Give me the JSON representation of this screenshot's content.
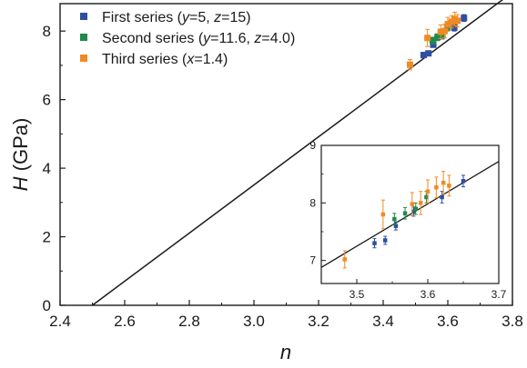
{
  "chart_data": [
    {
      "type": "scatter",
      "title": "",
      "xlabel": "n",
      "ylabel": {
        "var": "H",
        "unit": " (GPa)"
      },
      "xlim": [
        2.4,
        3.8
      ],
      "ylim": [
        0,
        8.8
      ],
      "xticks": [
        "2.4",
        "2.6",
        "2.8",
        "3.0",
        "3.2",
        "3.4",
        "3.6",
        "3.8"
      ],
      "yticks": [
        "0",
        "2",
        "4",
        "6",
        "8"
      ],
      "grid": false,
      "legend_position": "top-left",
      "fit_line": {
        "points": [
          [
            2.5,
            0
          ],
          [
            3.8,
            9.13
          ]
        ],
        "color": "#1a1a1a"
      },
      "series": [
        {
          "name": "First series (y=5, z=15)",
          "name_parts": [
            {
              "t": "First series (",
              "i": false
            },
            {
              "t": "y",
              "i": true
            },
            {
              "t": "=5, ",
              "i": false
            },
            {
              "t": "z",
              "i": true
            },
            {
              "t": "=15)",
              "i": false
            }
          ],
          "color": "#2e4fa0",
          "points": [
            {
              "x": 3.525,
              "y": 7.3,
              "err": 0.08
            },
            {
              "x": 3.54,
              "y": 7.35,
              "err": 0.07
            },
            {
              "x": 3.555,
              "y": 7.6,
              "err": 0.07
            },
            {
              "x": 3.58,
              "y": 7.85,
              "err": 0.08
            },
            {
              "x": 3.62,
              "y": 8.1,
              "err": 0.1
            },
            {
              "x": 3.65,
              "y": 8.38,
              "err": 0.1
            }
          ]
        },
        {
          "name": "Second series (y=11.6, z=4.0)",
          "name_parts": [
            {
              "t": "Second series (",
              "i": false
            },
            {
              "t": "y",
              "i": true
            },
            {
              "t": "=11.6, ",
              "i": false
            },
            {
              "t": "z",
              "i": true
            },
            {
              "t": "=4.0)",
              "i": false
            }
          ],
          "color": "#1f8a4c",
          "points": [
            {
              "x": 3.553,
              "y": 7.72,
              "err": 0.1
            },
            {
              "x": 3.568,
              "y": 7.82,
              "err": 0.1
            },
            {
              "x": 3.583,
              "y": 7.9,
              "err": 0.1
            },
            {
              "x": 3.598,
              "y": 8.1,
              "err": 0.1
            }
          ]
        },
        {
          "name": "Third series (x=1.4)",
          "name_parts": [
            {
              "t": "Third series (",
              "i": false
            },
            {
              "t": "x",
              "i": true
            },
            {
              "t": "=1.4)",
              "i": false
            }
          ],
          "color": "#f08a24",
          "points": [
            {
              "x": 3.483,
              "y": 7.02,
              "err": 0.15
            },
            {
              "x": 3.537,
              "y": 7.8,
              "err": 0.25
            },
            {
              "x": 3.578,
              "y": 7.98,
              "err": 0.2
            },
            {
              "x": 3.59,
              "y": 8.0,
              "err": 0.2
            },
            {
              "x": 3.6,
              "y": 8.2,
              "err": 0.2
            },
            {
              "x": 3.612,
              "y": 8.27,
              "err": 0.18
            },
            {
              "x": 3.622,
              "y": 8.35,
              "err": 0.2
            },
            {
              "x": 3.63,
              "y": 8.3,
              "err": 0.18
            }
          ]
        }
      ]
    },
    {
      "type": "scatter",
      "title": "inset",
      "xlabel": "",
      "ylabel": "",
      "xlim": [
        3.45,
        3.7
      ],
      "ylim": [
        6.6,
        9.0
      ],
      "xticks": [
        "3.5",
        "3.6",
        "3.7"
      ],
      "yticks": [
        "7",
        "8",
        "9"
      ],
      "grid": false,
      "fit_line": {
        "points": [
          [
            3.45,
            6.88
          ],
          [
            3.7,
            8.72
          ]
        ],
        "color": "#1a1a1a"
      },
      "series_ref": "same data as main chart"
    }
  ]
}
